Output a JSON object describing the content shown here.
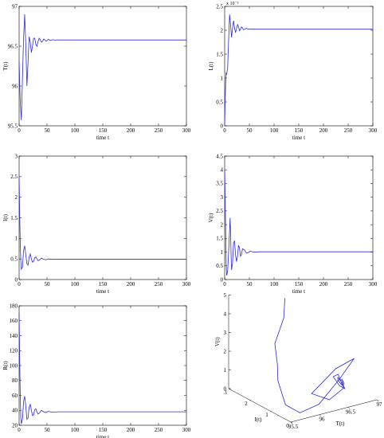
{
  "colors": {
    "line": "#2b2bd6",
    "axis": "#000000",
    "background": "#ffffff"
  },
  "chart_data": [
    {
      "type": "line",
      "xlabel": "time t",
      "ylabel": "T(t)",
      "xlim": [
        0,
        300
      ],
      "ylim": [
        95.5,
        97
      ],
      "xticks": [
        0,
        50,
        100,
        150,
        200,
        250,
        300
      ],
      "yticks": [
        95.5,
        96,
        96.5,
        97
      ],
      "multiplier": "",
      "series": [
        {
          "x": [
            0,
            2,
            4,
            6,
            8,
            10,
            12,
            14,
            16,
            18,
            20,
            22,
            24,
            26,
            28,
            30,
            32,
            34,
            36,
            38,
            40,
            42,
            44,
            46,
            48,
            50,
            52,
            54,
            56,
            58,
            60,
            62,
            64,
            66,
            68,
            70,
            80,
            90,
            100,
            150,
            200,
            250,
            300
          ],
          "y": [
            96.3,
            95.8,
            95.57,
            96.1,
            96.6,
            96.9,
            96.5,
            96.0,
            96.3,
            96.62,
            96.55,
            96.42,
            96.5,
            96.6,
            96.6,
            96.52,
            96.5,
            96.56,
            96.6,
            96.58,
            96.55,
            96.56,
            96.59,
            96.58,
            96.565,
            96.57,
            96.585,
            96.58,
            96.572,
            96.575,
            96.582,
            96.58,
            96.576,
            96.577,
            96.58,
            96.578,
            96.578,
            96.578,
            96.578,
            96.578,
            96.578,
            96.578,
            96.578
          ]
        }
      ]
    },
    {
      "type": "line",
      "xlabel": "time t",
      "ylabel": "L(t)",
      "xlim": [
        0,
        300
      ],
      "ylim": [
        0,
        0.0025
      ],
      "xticks": [
        0,
        50,
        100,
        150,
        200,
        250,
        300
      ],
      "yticks": [
        0,
        0.0005,
        0.001,
        0.0015,
        0.002,
        0.0025
      ],
      "yticklabels": [
        "0",
        "0.5",
        "1",
        "1.5",
        "2",
        "2.5"
      ],
      "multiplier": "x 10⁻³",
      "series": [
        {
          "x": [
            0,
            1,
            2,
            3,
            4,
            6,
            8,
            10,
            12,
            14,
            16,
            18,
            20,
            22,
            24,
            26,
            28,
            30,
            32,
            34,
            36,
            38,
            40,
            44,
            48,
            52,
            56,
            60,
            70,
            80,
            100,
            150,
            200,
            250,
            300
          ],
          "y": [
            0,
            0.0005,
            0.0009,
            0.0011,
            0.00108,
            0.0012,
            0.0018,
            0.00233,
            0.0021,
            0.00185,
            0.00205,
            0.0022,
            0.00205,
            0.00195,
            0.00203,
            0.00212,
            0.00208,
            0.00199,
            0.00202,
            0.00207,
            0.00205,
            0.00201,
            0.00202,
            0.00204,
            0.00202,
            0.002025,
            0.002022,
            0.002022,
            0.002022,
            0.002022,
            0.002022,
            0.002022,
            0.002022,
            0.002022,
            0.002022
          ]
        }
      ]
    },
    {
      "type": "line",
      "xlabel": "time t",
      "ylabel": "I(t)",
      "xlim": [
        0,
        300
      ],
      "ylim": [
        0,
        3
      ],
      "xticks": [
        0,
        50,
        100,
        150,
        200,
        250,
        300
      ],
      "yticks": [
        0,
        0.5,
        1,
        1.5,
        2,
        2.5,
        3
      ],
      "multiplier": "",
      "series": [
        {
          "x": [
            0,
            1,
            2,
            3,
            4,
            6,
            8,
            10,
            12,
            14,
            16,
            18,
            20,
            22,
            24,
            26,
            28,
            30,
            32,
            34,
            36,
            40,
            44,
            48,
            52,
            56,
            60,
            70,
            80,
            100,
            150,
            200,
            250,
            300
          ],
          "y": [
            2.5,
            1.6,
            0.9,
            0.45,
            0.25,
            0.3,
            0.7,
            0.82,
            0.6,
            0.38,
            0.35,
            0.55,
            0.62,
            0.5,
            0.42,
            0.44,
            0.53,
            0.55,
            0.5,
            0.46,
            0.47,
            0.52,
            0.49,
            0.48,
            0.5,
            0.495,
            0.49,
            0.495,
            0.495,
            0.495,
            0.495,
            0.495,
            0.495,
            0.495
          ]
        }
      ]
    },
    {
      "type": "line",
      "xlabel": "time t",
      "ylabel": "V(t)",
      "xlim": [
        0,
        300
      ],
      "ylim": [
        0,
        4.5
      ],
      "xticks": [
        0,
        50,
        100,
        150,
        200,
        250,
        300
      ],
      "yticks": [
        0,
        0.5,
        1,
        1.5,
        2,
        2.5,
        3,
        3.5,
        4,
        4.5
      ],
      "multiplier": "",
      "series": [
        {
          "x": [
            0,
            1,
            2,
            3,
            4,
            6,
            8,
            10,
            11,
            12,
            13,
            14,
            16,
            18,
            20,
            22,
            24,
            26,
            28,
            30,
            32,
            34,
            36,
            40,
            44,
            48,
            52,
            56,
            60,
            70,
            80,
            100,
            150,
            200,
            250,
            300
          ],
          "y": [
            4.0,
            3.0,
            1.8,
            0.6,
            0.15,
            0.3,
            1.0,
            1.8,
            2.25,
            1.7,
            0.9,
            0.35,
            0.6,
            1.35,
            1.4,
            0.9,
            0.65,
            0.85,
            1.25,
            1.15,
            0.85,
            0.9,
            1.12,
            1.08,
            0.96,
            0.98,
            1.04,
            1.01,
            1.0,
            1.01,
            1.01,
            1.01,
            1.01,
            1.01,
            1.01,
            1.01
          ]
        }
      ]
    },
    {
      "type": "line",
      "xlabel": "time t",
      "ylabel": "R(t)",
      "xlim": [
        0,
        300
      ],
      "ylim": [
        20,
        180
      ],
      "xticks": [
        0,
        50,
        100,
        150,
        200,
        250,
        300
      ],
      "yticks": [
        20,
        40,
        60,
        80,
        100,
        120,
        140,
        160,
        180
      ],
      "multiplier": "",
      "series": [
        {
          "x": [
            0,
            1,
            2,
            3,
            4,
            6,
            8,
            10,
            12,
            14,
            16,
            18,
            20,
            22,
            24,
            26,
            28,
            30,
            32,
            34,
            36,
            40,
            44,
            48,
            52,
            56,
            60,
            70,
            80,
            100,
            150,
            200,
            250,
            300
          ],
          "y": [
            170,
            110,
            60,
            30,
            22,
            28,
            52,
            59,
            45,
            28,
            30,
            44,
            48,
            40,
            33,
            34,
            41,
            42,
            38,
            35,
            36,
            40,
            38,
            37,
            38.5,
            38,
            37.5,
            38,
            38,
            38,
            38,
            38,
            38,
            38
          ]
        }
      ]
    },
    {
      "type": "line3d",
      "xlabel": "T(t)",
      "ylabel": "I(t)",
      "zlabel": "V(t)",
      "xlim": [
        95.5,
        97
      ],
      "ylim": [
        0,
        3
      ],
      "zlim": [
        0,
        5
      ],
      "xticks": [
        95.5,
        96,
        96.5,
        97
      ],
      "yticks": [
        0,
        1,
        2,
        3
      ],
      "zticks": [
        0,
        1,
        2,
        3,
        4,
        5
      ],
      "multiplier": "",
      "series": [
        {
          "T": [
            96.3,
            96.1,
            95.8,
            95.7,
            95.6,
            95.57,
            95.75,
            96.1,
            96.6,
            96.9,
            96.5,
            96.0,
            96.3,
            96.62,
            96.55,
            96.42,
            96.5,
            96.6,
            96.6,
            96.52,
            96.5,
            96.56,
            96.6,
            96.58,
            96.55,
            96.56,
            96.59,
            96.58,
            96.578
          ],
          "I": [
            2.5,
            2.0,
            1.6,
            1.2,
            0.9,
            0.45,
            0.25,
            0.3,
            0.7,
            0.82,
            0.6,
            0.38,
            0.35,
            0.55,
            0.62,
            0.5,
            0.42,
            0.44,
            0.53,
            0.55,
            0.5,
            0.46,
            0.47,
            0.52,
            0.49,
            0.48,
            0.5,
            0.495,
            0.495
          ],
          "V": [
            4.5,
            3.9,
            3.0,
            2.2,
            1.6,
            0.6,
            0.15,
            0.3,
            1.0,
            1.8,
            1.7,
            0.9,
            0.35,
            0.6,
            1.35,
            1.4,
            0.9,
            0.65,
            0.85,
            1.25,
            1.15,
            0.85,
            0.9,
            1.12,
            1.08,
            0.96,
            0.98,
            1.04,
            1.01
          ]
        }
      ]
    }
  ]
}
